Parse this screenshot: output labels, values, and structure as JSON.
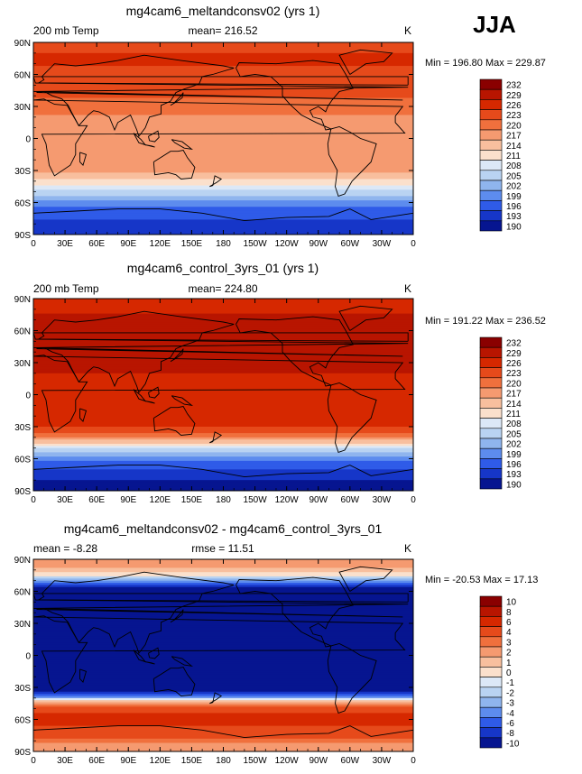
{
  "season": "JJA",
  "chart_data": [
    {
      "type": "heatmap",
      "title": "mg4cam6_meltandconsv02 (yrs 1)",
      "left_label": "200 mb Temp",
      "stat_label": "mean=  216.52",
      "units": "K",
      "minmax": "Min = 196.80  Max = 229.87",
      "min": 196.8,
      "max": 229.87,
      "mean": 216.52,
      "lat_ticks": [
        "90N",
        "60N",
        "30N",
        "0",
        "30S",
        "60S",
        "90S"
      ],
      "lon_ticks": [
        "0",
        "30E",
        "60E",
        "90E",
        "120E",
        "150E",
        "180",
        "150W",
        "120W",
        "90W",
        "60W",
        "30W",
        "0"
      ],
      "levels": [
        "232",
        "229",
        "226",
        "223",
        "220",
        "217",
        "214",
        "211",
        "208",
        "205",
        "202",
        "199",
        "196",
        "193",
        "190"
      ],
      "colors": [
        "#8a0000",
        "#b81500",
        "#d62800",
        "#e64a1b",
        "#f0703d",
        "#f59a70",
        "#f8bf9e",
        "#fbe0cc",
        "#dce8f7",
        "#b9d3f2",
        "#8fb5ee",
        "#5d8cee",
        "#2f5be8",
        "#1636c8",
        "#061590"
      ],
      "lat_profile": [
        {
          "lat": 90,
          "v": 224
        },
        {
          "lat": 75,
          "v": 227
        },
        {
          "lat": 60,
          "v": 225
        },
        {
          "lat": 45,
          "v": 224
        },
        {
          "lat": 30,
          "v": 222
        },
        {
          "lat": 15,
          "v": 218
        },
        {
          "lat": 0,
          "v": 217.5
        },
        {
          "lat": -15,
          "v": 218
        },
        {
          "lat": -30,
          "v": 218
        },
        {
          "lat": -40,
          "v": 213
        },
        {
          "lat": -45,
          "v": 210
        },
        {
          "lat": -55,
          "v": 204
        },
        {
          "lat": -65,
          "v": 198
        },
        {
          "lat": -75,
          "v": 196
        },
        {
          "lat": -90,
          "v": 195
        }
      ]
    },
    {
      "type": "heatmap",
      "title": "mg4cam6_control_3yrs_01 (yrs 1)",
      "left_label": "200 mb Temp",
      "stat_label": "mean=  224.80",
      "units": "K",
      "minmax": "Min = 191.22  Max = 236.52",
      "min": 191.22,
      "max": 236.52,
      "mean": 224.8,
      "lat_ticks": [
        "90N",
        "60N",
        "30N",
        "0",
        "30S",
        "60S",
        "90S"
      ],
      "lon_ticks": [
        "0",
        "30E",
        "60E",
        "90E",
        "120E",
        "150E",
        "180",
        "150W",
        "120W",
        "90W",
        "60W",
        "30W",
        "0"
      ],
      "levels": [
        "232",
        "229",
        "226",
        "223",
        "220",
        "217",
        "214",
        "211",
        "208",
        "205",
        "202",
        "199",
        "196",
        "193",
        "190"
      ],
      "colors": [
        "#8a0000",
        "#b81500",
        "#d62800",
        "#e64a1b",
        "#f0703d",
        "#f59a70",
        "#f8bf9e",
        "#fbe0cc",
        "#dce8f7",
        "#b9d3f2",
        "#8fb5ee",
        "#5d8cee",
        "#2f5be8",
        "#1636c8",
        "#061590"
      ],
      "lat_profile": [
        {
          "lat": 90,
          "v": 228
        },
        {
          "lat": 75,
          "v": 229
        },
        {
          "lat": 60,
          "v": 229
        },
        {
          "lat": 45,
          "v": 231
        },
        {
          "lat": 30,
          "v": 231
        },
        {
          "lat": 15,
          "v": 228
        },
        {
          "lat": 0,
          "v": 227
        },
        {
          "lat": -15,
          "v": 227
        },
        {
          "lat": -30,
          "v": 226
        },
        {
          "lat": -40,
          "v": 220
        },
        {
          "lat": -45,
          "v": 214
        },
        {
          "lat": -50,
          "v": 208
        },
        {
          "lat": -60,
          "v": 200
        },
        {
          "lat": -75,
          "v": 194
        },
        {
          "lat": -90,
          "v": 191
        }
      ]
    },
    {
      "type": "heatmap",
      "title": "mg4cam6_meltandconsv02 - mg4cam6_control_3yrs_01",
      "left_label": "mean =   -8.28",
      "stat_label": "rmse =   11.51",
      "units": "K",
      "minmax": "Min = -20.53  Max =   17.13",
      "min": -20.53,
      "max": 17.13,
      "mean": -8.28,
      "rmse": 11.51,
      "lat_ticks": [
        "90N",
        "60N",
        "30N",
        "0",
        "30S",
        "60S",
        "90S"
      ],
      "lon_ticks": [
        "0",
        "30E",
        "60E",
        "90E",
        "120E",
        "150E",
        "180",
        "150W",
        "120W",
        "90W",
        "60W",
        "30W",
        "0"
      ],
      "levels": [
        "10",
        "8",
        "6",
        "4",
        "3",
        "2",
        "1",
        "0",
        "-1",
        "-2",
        "-3",
        "-4",
        "-6",
        "-8",
        "-10"
      ],
      "colors": [
        "#8a0000",
        "#b81500",
        "#d62800",
        "#e64a1b",
        "#f0703d",
        "#f59a70",
        "#f8bf9e",
        "#fbe0cc",
        "#dce8f7",
        "#b9d3f2",
        "#8fb5ee",
        "#5d8cee",
        "#2f5be8",
        "#1636c8",
        "#061590"
      ],
      "lat_profile": [
        {
          "lat": 90,
          "v": 3
        },
        {
          "lat": 82,
          "v": 2
        },
        {
          "lat": 75,
          "v": 0
        },
        {
          "lat": 68,
          "v": -4
        },
        {
          "lat": 62,
          "v": -9
        },
        {
          "lat": 55,
          "v": -11
        },
        {
          "lat": 0,
          "v": -11
        },
        {
          "lat": -28,
          "v": -11
        },
        {
          "lat": -35,
          "v": -8
        },
        {
          "lat": -40,
          "v": -2
        },
        {
          "lat": -44,
          "v": 2
        },
        {
          "lat": -50,
          "v": 5
        },
        {
          "lat": -60,
          "v": 7
        },
        {
          "lat": -72,
          "v": 5
        },
        {
          "lat": -82,
          "v": 3
        },
        {
          "lat": -90,
          "v": 2
        }
      ]
    }
  ]
}
